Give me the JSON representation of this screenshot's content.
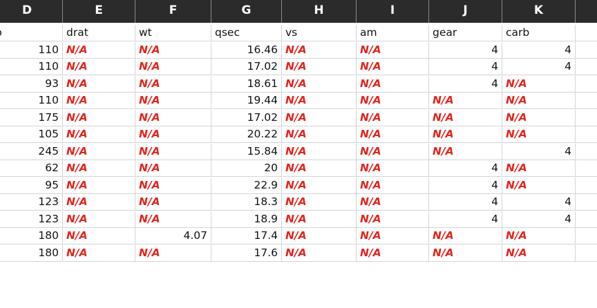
{
  "columns": [
    "D",
    "E",
    "F",
    "G",
    "H",
    "I",
    "J",
    "K",
    ""
  ],
  "header_row": [
    "p",
    "drat",
    "wt",
    "qsec",
    "vs",
    "am",
    "gear",
    "carb",
    ""
  ],
  "rows": [
    [
      "110",
      "N/A",
      "N/A",
      "16.46",
      "N/A",
      "N/A",
      "4",
      "4",
      ""
    ],
    [
      "110",
      "N/A",
      "N/A",
      "17.02",
      "N/A",
      "N/A",
      "4",
      "4",
      ""
    ],
    [
      "93",
      "N/A",
      "N/A",
      "18.61",
      "N/A",
      "N/A",
      "4",
      "N/A",
      ""
    ],
    [
      "110",
      "N/A",
      "N/A",
      "19.44",
      "N/A",
      "N/A",
      "N/A",
      "N/A",
      ""
    ],
    [
      "175",
      "N/A",
      "N/A",
      "17.02",
      "N/A",
      "N/A",
      "N/A",
      "N/A",
      ""
    ],
    [
      "105",
      "N/A",
      "N/A",
      "20.22",
      "N/A",
      "N/A",
      "N/A",
      "N/A",
      ""
    ],
    [
      "245",
      "N/A",
      "N/A",
      "15.84",
      "N/A",
      "N/A",
      "N/A",
      "4",
      ""
    ],
    [
      "62",
      "N/A",
      "N/A",
      "20",
      "N/A",
      "N/A",
      "4",
      "N/A",
      ""
    ],
    [
      "95",
      "N/A",
      "N/A",
      "22.9",
      "N/A",
      "N/A",
      "4",
      "N/A",
      ""
    ],
    [
      "123",
      "N/A",
      "N/A",
      "18.3",
      "N/A",
      "N/A",
      "4",
      "4",
      ""
    ],
    [
      "123",
      "N/A",
      "N/A",
      "18.9",
      "N/A",
      "N/A",
      "4",
      "4",
      ""
    ],
    [
      "180",
      "N/A",
      "4.07",
      "17.4",
      "N/A",
      "N/A",
      "N/A",
      "N/A",
      ""
    ],
    [
      "180",
      "N/A",
      "N/A",
      "17.6",
      "N/A",
      "N/A",
      "N/A",
      "N/A",
      ""
    ]
  ],
  "colors": {
    "header_bg": "#2b2b2b",
    "header_text": "#ffffff",
    "na_text": "#e0261f",
    "gridline": "#d4d4d4"
  }
}
